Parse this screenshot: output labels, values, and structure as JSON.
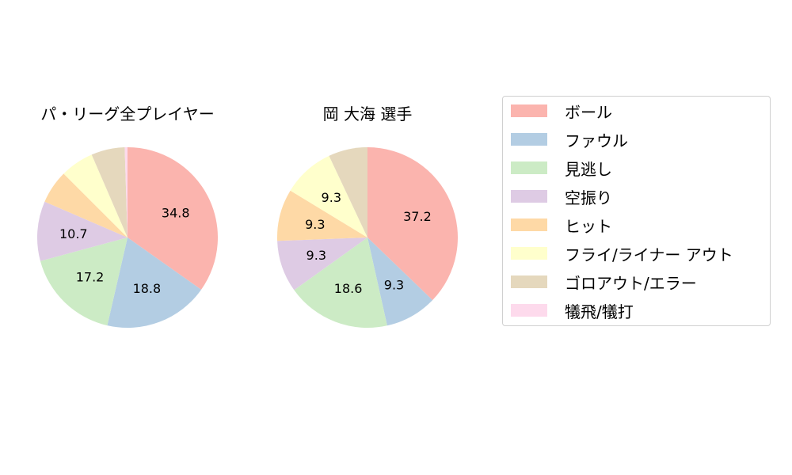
{
  "chart_data": [
    {
      "type": "pie",
      "title": "パ・リーグ全プレイヤー",
      "categories": [
        "ボール",
        "ファウル",
        "見逃し",
        "空振り",
        "ヒット",
        "フライ/ライナー アウト",
        "ゴロアウト/エラー",
        "犠飛/犠打"
      ],
      "values": [
        34.8,
        18.8,
        17.2,
        10.7,
        6.0,
        6.0,
        6.0,
        0.5
      ],
      "labels_shown": [
        "34.8",
        "18.8",
        "17.2",
        "10.7",
        "",
        "",
        "",
        ""
      ],
      "start_angle": 90,
      "direction": "clockwise"
    },
    {
      "type": "pie",
      "title": "岡 大海  選手",
      "categories": [
        "ボール",
        "ファウル",
        "見逃し",
        "空振り",
        "ヒット",
        "フライ/ライナー アウト",
        "ゴロアウト/エラー",
        "犠飛/犠打"
      ],
      "values": [
        37.2,
        9.3,
        18.6,
        9.3,
        9.3,
        9.3,
        7.0,
        0.0
      ],
      "labels_shown": [
        "37.2",
        "9.3",
        "18.6",
        "9.3",
        "9.3",
        "9.3",
        "",
        ""
      ],
      "start_angle": 90,
      "direction": "clockwise"
    }
  ],
  "colors": [
    "#fbb4ae",
    "#b3cde3",
    "#ccebc5",
    "#decbe4",
    "#fed9a6",
    "#ffffcc",
    "#e5d8bd",
    "#fddaec"
  ],
  "titles": {
    "left": "パ・リーグ全プレイヤー",
    "right": "岡 大海  選手"
  },
  "legend": {
    "items": [
      {
        "label": "ボール",
        "color": "#fbb4ae"
      },
      {
        "label": "ファウル",
        "color": "#b3cde3"
      },
      {
        "label": "見逃し",
        "color": "#ccebc5"
      },
      {
        "label": "空振り",
        "color": "#decbe4"
      },
      {
        "label": "ヒット",
        "color": "#fed9a6"
      },
      {
        "label": "フライ/ライナー アウト",
        "color": "#ffffcc"
      },
      {
        "label": "ゴロアウト/エラー",
        "color": "#e5d8bd"
      },
      {
        "label": "犠飛/犠打",
        "color": "#fddaec"
      }
    ]
  }
}
